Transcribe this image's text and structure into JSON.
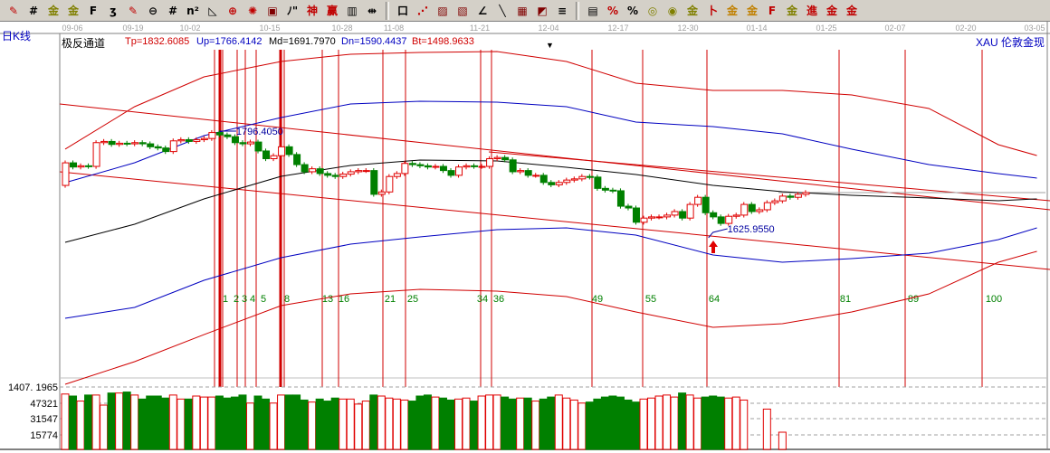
{
  "toolbar": {
    "icons": [
      {
        "name": "draw-pen-icon",
        "glyph": "✎",
        "color": "#c00000"
      },
      {
        "name": "grid-lines-icon",
        "glyph": "#",
        "color": "#000"
      },
      {
        "name": "gold-ratio-icon",
        "glyph": "金",
        "color": "#808000"
      },
      {
        "name": "gold-ratio-2-icon",
        "glyph": "金",
        "color": "#808000"
      },
      {
        "name": "fib-F-icon",
        "glyph": "F",
        "color": "#000"
      },
      {
        "name": "spiral-icon",
        "glyph": "ʒ",
        "color": "#000"
      },
      {
        "name": "draw-pen-2-icon",
        "glyph": "✎",
        "color": "#c00000"
      },
      {
        "name": "circle-icon",
        "glyph": "⊖",
        "color": "#000"
      },
      {
        "name": "parallel-lines-icon",
        "glyph": "#",
        "color": "#000"
      },
      {
        "name": "n-squared-icon",
        "glyph": "n²",
        "color": "#000"
      },
      {
        "name": "triangle-icon",
        "glyph": "◺",
        "color": "#000"
      },
      {
        "name": "crosshair-icon",
        "glyph": "⊕",
        "color": "#c00000"
      },
      {
        "name": "target-icon",
        "glyph": "✺",
        "color": "#c00000"
      },
      {
        "name": "square-target-icon",
        "glyph": "▣",
        "color": "#800000"
      },
      {
        "name": "wave-icon",
        "glyph": "ﾉ\"",
        "color": "#000"
      },
      {
        "name": "shen-icon",
        "glyph": "神",
        "color": "#c00000"
      },
      {
        "name": "ying-icon",
        "glyph": "赢",
        "color": "#c00000"
      },
      {
        "name": "ruler-icon",
        "glyph": "▥",
        "color": "#000"
      },
      {
        "name": "width-icon",
        "glyph": "⇹",
        "color": "#000"
      },
      {
        "name": "box-icon",
        "glyph": "口",
        "color": "#000"
      },
      {
        "name": "fan-lines-icon",
        "glyph": "⋰",
        "color": "#c00000"
      },
      {
        "name": "fan-box-icon",
        "glyph": "▨",
        "color": "#800000"
      },
      {
        "name": "fan-box-2-icon",
        "glyph": "▧",
        "color": "#800000"
      },
      {
        "name": "angle-icon",
        "glyph": "∠",
        "color": "#000"
      },
      {
        "name": "slash-icon",
        "glyph": "╲",
        "color": "#000"
      },
      {
        "name": "grid-box-icon",
        "glyph": "▦",
        "color": "#800000"
      },
      {
        "name": "diagonal-box-icon",
        "glyph": "◩",
        "color": "#800000"
      },
      {
        "name": "lines-icon",
        "glyph": "≡",
        "color": "#000"
      },
      {
        "name": "table-icon",
        "glyph": "▤",
        "color": "#000"
      },
      {
        "name": "percent-chart-icon",
        "glyph": "%",
        "color": "#c00000"
      },
      {
        "name": "percent-icon",
        "glyph": "%",
        "color": "#000"
      },
      {
        "name": "coin-icon",
        "glyph": "◎",
        "color": "#808000"
      },
      {
        "name": "gold-coin-icon",
        "glyph": "◉",
        "color": "#808000"
      },
      {
        "name": "gold-bar-icon",
        "glyph": "金",
        "color": "#808000"
      },
      {
        "name": "sword-icon",
        "glyph": "卜",
        "color": "#c00000"
      },
      {
        "name": "gold-2-icon",
        "glyph": "金",
        "color": "#c08000"
      },
      {
        "name": "gold-3-icon",
        "glyph": "金",
        "color": "#c08000"
      },
      {
        "name": "f-gold-icon",
        "glyph": "F",
        "color": "#c00000"
      },
      {
        "name": "gold-4-icon",
        "glyph": "金",
        "color": "#808000"
      },
      {
        "name": "jin-icon",
        "glyph": "進",
        "color": "#c00000"
      },
      {
        "name": "gold-5-icon",
        "glyph": "金",
        "color": "#c00000"
      },
      {
        "name": "gold-6-icon",
        "glyph": "金",
        "color": "#c00000"
      }
    ]
  },
  "header": {
    "period": "日K线",
    "indicator": "极反通道",
    "tp": "Tp=1832.6085",
    "up": "Up=1766.4142",
    "md": "Md=1691.7970",
    "dn": "Dn=1590.4437",
    "bt": "Bt=1498.9633",
    "symbol": "XAU 伦敦金现",
    "marker": "▼"
  },
  "colors": {
    "up": "#e00000",
    "down": "#008000",
    "tp": "#d00000",
    "up_band": "#0000c0",
    "md": "#000000",
    "dn_band": "#0000c0",
    "bt": "#d00000",
    "trend": "#d00000",
    "cycle": "#d00000",
    "fib_label": "#008000",
    "annotation": "#0000a0"
  },
  "chart_data": {
    "type": "candlestick",
    "x_tick_labels": [
      "09-06",
      "09-19",
      "10-02",
      "10-15",
      "10-28",
      "11-08",
      "11-21",
      "12-04",
      "12-17",
      "12-30",
      "01-14",
      "01-25",
      "02-07",
      "02-20",
      "03-05"
    ],
    "first_open": 1705,
    "closes": [
      1743,
      1736,
      1738,
      1737,
      1777,
      1779,
      1774,
      1776,
      1775,
      1777,
      1775,
      1770,
      1768,
      1762,
      1780,
      1782,
      1779,
      1782,
      1784,
      1794,
      1790,
      1787,
      1777,
      1775,
      1778,
      1763,
      1750,
      1755,
      1770,
      1757,
      1740,
      1728,
      1733,
      1725,
      1722,
      1720,
      1724,
      1728,
      1730,
      1730,
      1690,
      1694,
      1720,
      1725,
      1742,
      1740,
      1738,
      1736,
      1737,
      1730,
      1722,
      1736,
      1738,
      1737,
      1737,
      1750,
      1752,
      1748,
      1728,
      1730,
      1722,
      1722,
      1710,
      1706,
      1710,
      1714,
      1716,
      1720,
      1719,
      1700,
      1697,
      1696,
      1670,
      1667,
      1643,
      1650,
      1652,
      1652,
      1655,
      1661,
      1650,
      1673,
      1685,
      1659,
      1652,
      1641,
      1653,
      1655,
      1673,
      1661,
      1664,
      1676,
      1679,
      1687,
      1685,
      1690,
      1693
    ],
    "bands": {
      "bar_index": [
        0,
        9,
        18,
        28,
        37,
        46,
        56,
        65,
        74,
        84,
        93,
        102,
        112,
        121,
        126
      ],
      "Tp": [
        1766,
        1837.5,
        1887.7,
        1913.6,
        1925.8,
        1928.8,
        1930.3,
        1913.6,
        1877.1,
        1864.9,
        1864.9,
        1857.3,
        1834.5,
        1773.6,
        1755.3
      ],
      "Up": [
        1709.6,
        1743.1,
        1788.8,
        1819.2,
        1842.1,
        1846.6,
        1845.1,
        1837.5,
        1811.6,
        1804.0,
        1791.8,
        1766.0,
        1740.1,
        1724.9,
        1717.3
      ],
      "Md": [
        1609.2,
        1639.6,
        1682.3,
        1720.3,
        1738.6,
        1747.7,
        1746.2,
        1735.5,
        1723.3,
        1705.1,
        1694.4,
        1688.3,
        1683.8,
        1679.2,
        1682.3
      ],
      "Dn": [
        1481.4,
        1499.6,
        1545.3,
        1583.3,
        1606.1,
        1618.3,
        1630.5,
        1633.5,
        1621.4,
        1587.9,
        1575.7,
        1581.8,
        1590.9,
        1613.8,
        1633.5
      ],
      "Bt": [
        1370.2,
        1408.3,
        1453.9,
        1502.7,
        1522.4,
        1530.1,
        1527.0,
        1517.9,
        1492.0,
        1466.1,
        1472.2,
        1492.0,
        1522.4,
        1575.7,
        1594.0
      ]
    },
    "annotations": [
      {
        "label": "1796.4050",
        "price": 1796.405,
        "bar": 21
      },
      {
        "label": "1625.9550",
        "price": 1625.955,
        "bar": 84
      }
    ],
    "fib_cycle_labels": [
      "1",
      "2",
      "3",
      "4",
      "5",
      "8",
      "13",
      "16",
      "21",
      "25",
      "34",
      "36",
      "49",
      "55",
      "64",
      "81",
      "89",
      "100"
    ],
    "volume": {
      "axis_labels": [
        "1407. 1965",
        "47321",
        "31547",
        "15774"
      ],
      "values": [
        56000,
        54000,
        49000,
        55000,
        55000,
        45000,
        57000,
        57000,
        58000,
        55000,
        51000,
        54000,
        54000,
        52000,
        55000,
        51000,
        51000,
        54000,
        53000,
        53000,
        54000,
        52000,
        53000,
        55000,
        47000,
        54000,
        51000,
        47000,
        55000,
        55000,
        55000,
        50000,
        48000,
        51000,
        49000,
        52000,
        51000,
        51000,
        46000,
        49000,
        55000,
        54000,
        52000,
        51000,
        50000,
        49000,
        54000,
        55000,
        53000,
        52000,
        50000,
        51000,
        52000,
        49000,
        54000,
        55000,
        55000,
        53000,
        51000,
        52000,
        52000,
        49000,
        51000,
        53000,
        55000,
        52000,
        50000,
        47000,
        48000,
        51000,
        53000,
        54000,
        53000,
        50000,
        48000,
        51000,
        52000,
        54000,
        55000,
        53000,
        57000,
        55000,
        52000,
        53000,
        54000,
        53000,
        52000,
        53000,
        50000,
        null,
        null,
        41000,
        null,
        18000
      ]
    }
  }
}
